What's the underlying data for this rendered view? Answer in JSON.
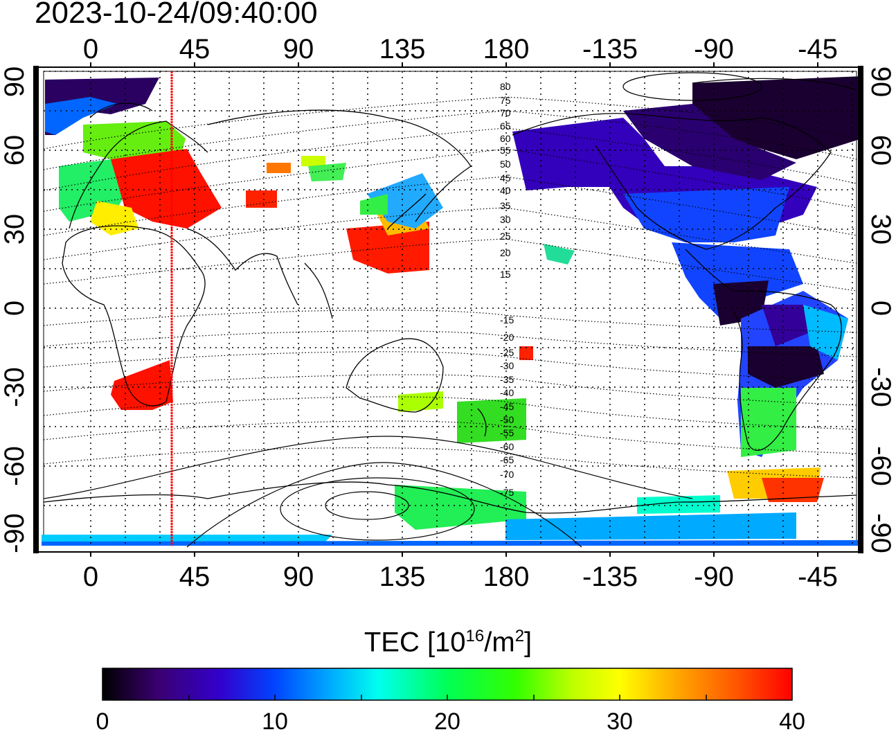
{
  "timestamp": "2023-10-24/09:40:00",
  "map": {
    "x_ticks": [
      "0",
      "45",
      "90",
      "135",
      "180",
      "-135",
      "-90",
      "-45"
    ],
    "y_ticks": [
      "90",
      "60",
      "30",
      "0",
      "-30",
      "-60",
      "-90"
    ],
    "contour_labels": [
      "80",
      "75",
      "70",
      "65",
      "60",
      "55",
      "50",
      "45",
      "40",
      "35",
      "30",
      "25",
      "20",
      "15",
      "-15",
      "-20",
      "-25",
      "-30",
      "-35",
      "-40",
      "-45",
      "-50",
      "-55",
      "-60",
      "-65",
      "-70",
      "-75"
    ],
    "marker_longitude": 35,
    "colors": {
      "marker": "#ff0000",
      "grid": "#000000"
    }
  },
  "colorbar": {
    "title_prefix": "TEC  [10",
    "title_exp1": "16",
    "title_mid": "/m",
    "title_exp2": "2",
    "title_suffix": "]",
    "ticks": [
      "0",
      "10",
      "20",
      "30",
      "40"
    ],
    "range": [
      0,
      40
    ],
    "stops": [
      "#000000",
      "#3a0070",
      "#3300cc",
      "#0044ff",
      "#00aaff",
      "#00ffee",
      "#00ff55",
      "#33ff00",
      "#bbff00",
      "#ffff00",
      "#ffaa00",
      "#ff5500",
      "#ff0000"
    ]
  }
}
